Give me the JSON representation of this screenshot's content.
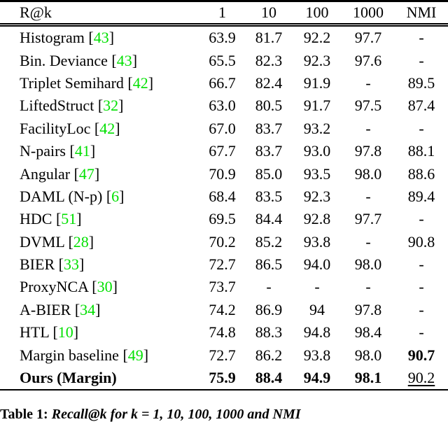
{
  "table": {
    "header": {
      "label": "R@k",
      "cols": [
        "1",
        "10",
        "100",
        "1000",
        "NMI"
      ]
    },
    "rows": [
      {
        "name": "Histogram",
        "cite": "43",
        "values": [
          "63.9",
          "81.7",
          "92.2",
          "97.7",
          "-"
        ]
      },
      {
        "name": "Bin. Deviance",
        "cite": "43",
        "values": [
          "65.5",
          "82.3",
          "92.3",
          "97.6",
          "-"
        ]
      },
      {
        "name": "Triplet Semihard",
        "cite": "42",
        "values": [
          "66.7",
          "82.4",
          "91.9",
          "-",
          "89.5"
        ]
      },
      {
        "name": "LiftedStruct",
        "cite": "32",
        "values": [
          "63.0",
          "80.5",
          "91.7",
          "97.5",
          "87.4"
        ]
      },
      {
        "name": "FacilityLoc",
        "cite": "42",
        "values": [
          "67.0",
          "83.7",
          "93.2",
          "-",
          "-"
        ]
      },
      {
        "name": "N-pairs",
        "cite": "41",
        "values": [
          "67.7",
          "83.7",
          "93.0",
          "97.8",
          "88.1"
        ]
      },
      {
        "name": "Angular",
        "cite": "47",
        "values": [
          "70.9",
          "85.0",
          "93.5",
          "98.0",
          "88.6"
        ]
      },
      {
        "name": "DAML (N-p)",
        "cite": "6",
        "values": [
          "68.4",
          "83.5",
          "92.3",
          "-",
          "89.4"
        ]
      },
      {
        "name": "HDC",
        "cite": "51",
        "values": [
          "69.5",
          "84.4",
          "92.8",
          "97.7",
          "-"
        ]
      },
      {
        "name": "DVML",
        "cite": "28",
        "values": [
          "70.2",
          "85.2",
          "93.8",
          "-",
          "90.8"
        ]
      },
      {
        "name": "BIER",
        "cite": "33",
        "values": [
          "72.7",
          "86.5",
          "94.0",
          "98.0",
          "-"
        ]
      },
      {
        "name": "ProxyNCA",
        "cite": "30",
        "values": [
          "73.7",
          "-",
          "-",
          "-",
          "-"
        ]
      },
      {
        "name": "A-BIER",
        "cite": "34",
        "values": [
          "74.2",
          "86.9",
          "94",
          "97.8",
          "-"
        ]
      },
      {
        "name": "HTL",
        "cite": "10",
        "values": [
          "74.8",
          "88.3",
          "94.8",
          "98.4",
          "-"
        ]
      },
      {
        "name": "Margin baseline",
        "cite": "49",
        "values": [
          "72.7",
          "86.2",
          "93.8",
          "98.0",
          "90.7"
        ],
        "bold_cols": [
          4
        ]
      },
      {
        "name": "Ours (Margin)",
        "cite": null,
        "bold_name": true,
        "values": [
          "75.9",
          "88.4",
          "94.9",
          "98.1",
          "90.2"
        ],
        "bold_cols": [
          0,
          1,
          2,
          3
        ],
        "underline_cols": [
          4
        ]
      }
    ]
  },
  "caption": {
    "label": "Table 1:",
    "body": "Recall@k for k = 1, 10, 100, 1000 and NMI"
  },
  "colors": {
    "citation_green": "#00e000",
    "rule_black": "#000000"
  }
}
